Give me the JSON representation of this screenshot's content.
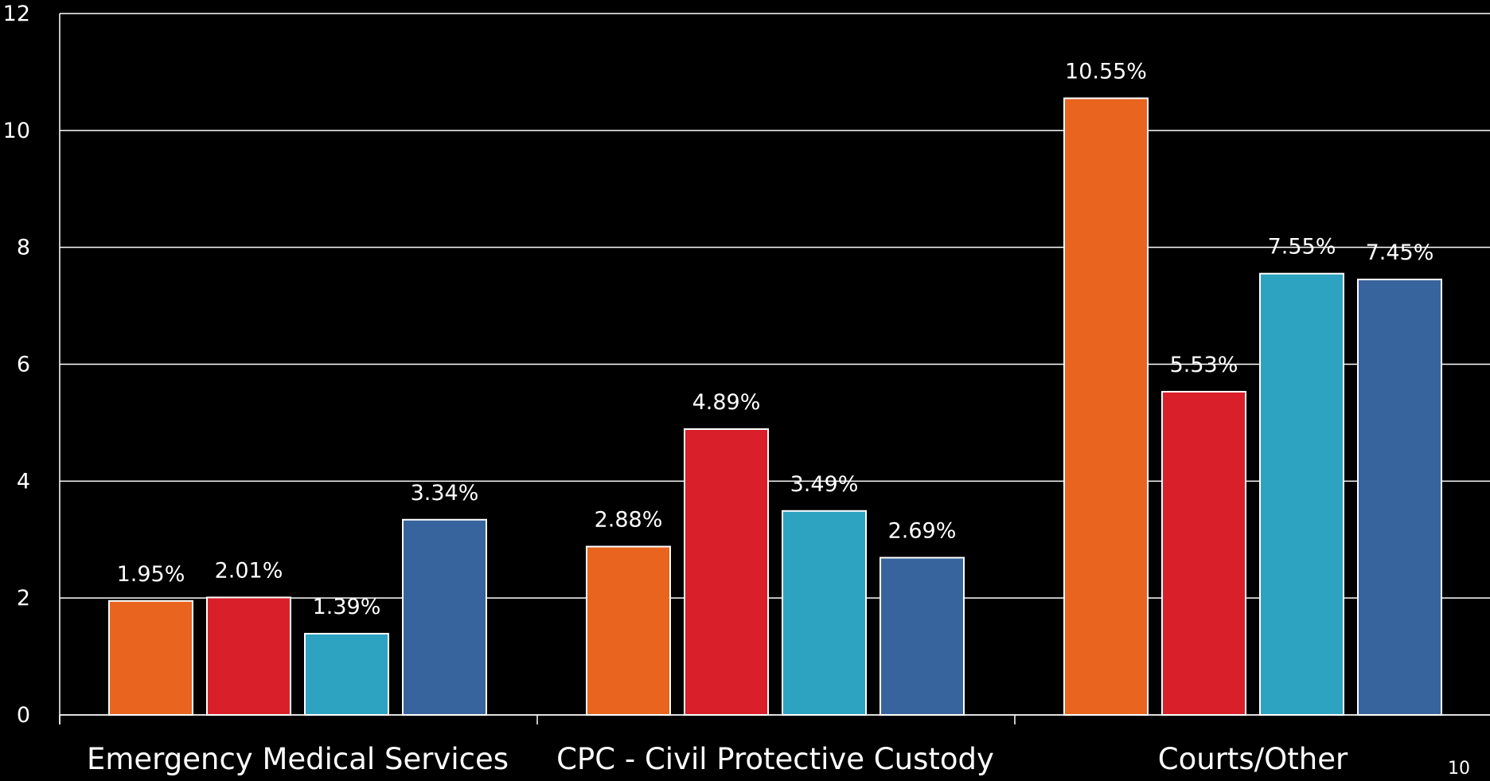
{
  "chart_data": {
    "type": "bar",
    "categories": [
      "Emergency Medical Services",
      "CPC - Civil Protective Custody",
      "Courts/Other"
    ],
    "series": [
      {
        "values": [
          1.95,
          2.88,
          10.55
        ],
        "labels": [
          "1.95%",
          "2.88%",
          "10.55%"
        ],
        "color": "#e8641f"
      },
      {
        "values": [
          2.01,
          4.89,
          5.53
        ],
        "labels": [
          "2.01%",
          "4.89%",
          "5.53%"
        ],
        "color": "#d9202a"
      },
      {
        "values": [
          1.39,
          3.49,
          7.55
        ],
        "labels": [
          "1.39%",
          "3.49%",
          "7.55%"
        ],
        "color": "#2ea3c1"
      },
      {
        "values": [
          3.34,
          2.69,
          7.45
        ],
        "labels": [
          "3.34%",
          "2.69%",
          "7.45%"
        ],
        "color": "#38649e"
      }
    ],
    "yticks": [
      "0",
      "2",
      "4",
      "6",
      "8",
      "10",
      "12"
    ],
    "ylim": [
      0,
      12
    ],
    "grid": true,
    "background": "#000000",
    "axis_color": "#ffffff"
  },
  "page_number": "10"
}
